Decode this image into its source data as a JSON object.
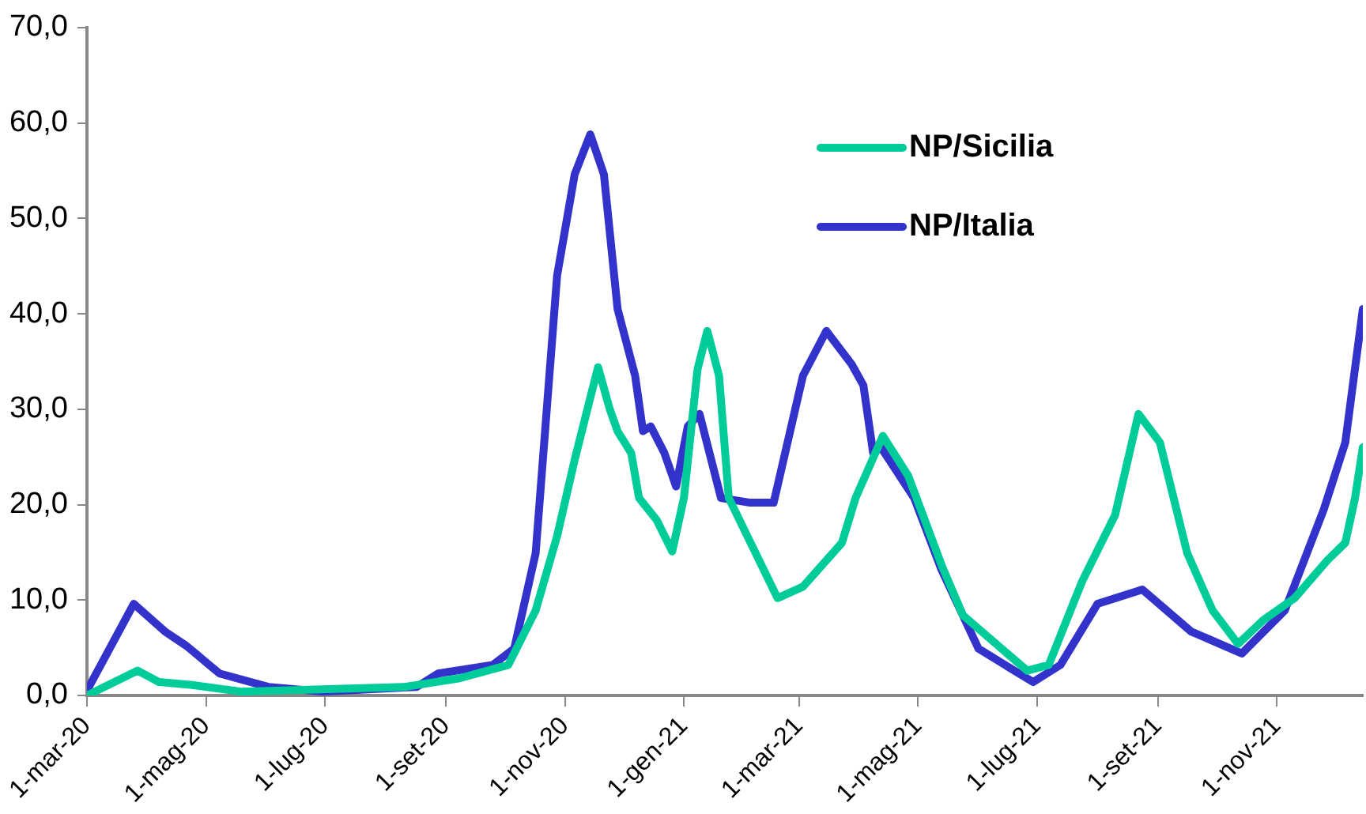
{
  "chart_data": {
    "type": "line",
    "legend": "top right",
    "grid": false,
    "marker": "none",
    "line_style": "solid",
    "xlim": [
      "2020-03-01",
      "2021-12-15"
    ],
    "xticks": [
      {
        "value": "2020-03-01",
        "label": "1-mar-20"
      },
      {
        "value": "2020-05-01",
        "label": "1-mag-20"
      },
      {
        "value": "2020-07-01",
        "label": "1-lug-20"
      },
      {
        "value": "2020-09-01",
        "label": "1-set-20"
      },
      {
        "value": "2020-11-01",
        "label": "1-nov-20"
      },
      {
        "value": "2021-01-01",
        "label": "1-gen-21"
      },
      {
        "value": "2021-03-01",
        "label": "1-mar-21"
      },
      {
        "value": "2021-05-01",
        "label": "1-mag-21"
      },
      {
        "value": "2021-07-01",
        "label": "1-lug-21"
      },
      {
        "value": "2021-09-01",
        "label": "1-set-21"
      },
      {
        "value": "2021-11-01",
        "label": "1-nov-21"
      }
    ],
    "ylim": [
      0,
      70
    ],
    "yticks": [
      {
        "value": 0,
        "label": "0,0"
      },
      {
        "value": 10,
        "label": "10,0"
      },
      {
        "value": 20,
        "label": "20,0"
      },
      {
        "value": 30,
        "label": "30,0"
      },
      {
        "value": 40,
        "label": "40,0"
      },
      {
        "value": 50,
        "label": "50,0"
      },
      {
        "value": 60,
        "label": "60,0"
      },
      {
        "value": 70,
        "label": "70,0"
      }
    ],
    "series": [
      {
        "name": "NP/Sicilia",
        "color": "#00cc99",
        "x": [
          "2020-03-01",
          "2020-03-27",
          "2020-04-07",
          "2020-04-24",
          "2020-05-19",
          "2020-08-11",
          "2020-09-08",
          "2020-10-03",
          "2020-10-17",
          "2020-10-28",
          "2020-11-06",
          "2020-11-14",
          "2020-11-18",
          "2020-11-24",
          "2020-11-28",
          "2020-12-05",
          "2020-12-09",
          "2020-12-18",
          "2020-12-26",
          "2021-01-01",
          "2021-01-08",
          "2021-01-13",
          "2021-01-19",
          "2021-01-24",
          "2021-02-18",
          "2021-03-03",
          "2021-03-23",
          "2021-03-30",
          "2021-04-13",
          "2021-04-26",
          "2021-05-13",
          "2021-05-24",
          "2021-06-10",
          "2021-06-26",
          "2021-07-07",
          "2021-07-24",
          "2021-08-10",
          "2021-08-22",
          "2021-09-02",
          "2021-09-16",
          "2021-09-29",
          "2021-10-12",
          "2021-10-25",
          "2021-11-10",
          "2021-11-27",
          "2021-12-06",
          "2021-12-11",
          "2021-12-15"
        ],
        "values": [
          0,
          2.6,
          1.4,
          1.1,
          0.4,
          0.9,
          1.8,
          3.2,
          8.9,
          16.7,
          24.7,
          31.2,
          34.4,
          30.0,
          27.7,
          25.4,
          20.7,
          18.4,
          15.1,
          20.7,
          34.2,
          38.2,
          33.5,
          20.7,
          10.2,
          11.4,
          16.0,
          20.7,
          27.2,
          23.0,
          13.7,
          8.4,
          5.4,
          2.6,
          3.2,
          11.9,
          18.9,
          29.5,
          26.5,
          14.9,
          8.9,
          5.4,
          7.9,
          10.2,
          14.2,
          16.0,
          20.7,
          26.0
        ]
      },
      {
        "name": "NP/Italia",
        "color": "#3333cc",
        "x": [
          "2020-03-01",
          "2020-03-25",
          "2020-04-10",
          "2020-04-21",
          "2020-05-08",
          "2020-06-02",
          "2020-06-30",
          "2020-08-17",
          "2020-08-28",
          "2020-09-25",
          "2020-10-06",
          "2020-10-17",
          "2020-10-28",
          "2020-11-06",
          "2020-11-14",
          "2020-11-21",
          "2020-11-28",
          "2020-12-07",
          "2020-12-11",
          "2020-12-15",
          "2020-12-22",
          "2020-12-28",
          "2021-01-03",
          "2021-01-09",
          "2021-01-15",
          "2021-01-20",
          "2021-02-04",
          "2021-02-16",
          "2021-03-03",
          "2021-03-15",
          "2021-03-28",
          "2021-04-03",
          "2021-04-08",
          "2021-04-12",
          "2021-04-29",
          "2021-05-13",
          "2021-06-01",
          "2021-06-29",
          "2021-07-13",
          "2021-08-01",
          "2021-08-24",
          "2021-09-18",
          "2021-10-14",
          "2021-11-05",
          "2021-11-25",
          "2021-12-06",
          "2021-12-15"
        ],
        "values": [
          0.5,
          9.6,
          6.7,
          5.2,
          2.3,
          0.9,
          0.4,
          0.9,
          2.3,
          3.2,
          4.9,
          14.9,
          44.0,
          54.6,
          58.8,
          54.6,
          40.5,
          33.5,
          27.7,
          28.2,
          25.4,
          21.9,
          28.2,
          29.5,
          24.7,
          20.7,
          20.2,
          20.2,
          33.5,
          38.2,
          34.7,
          32.5,
          25.4,
          26.0,
          20.7,
          13.2,
          4.9,
          1.4,
          3.2,
          9.6,
          11.1,
          6.7,
          4.4,
          8.9,
          19.5,
          26.5,
          40.5
        ]
      }
    ]
  }
}
